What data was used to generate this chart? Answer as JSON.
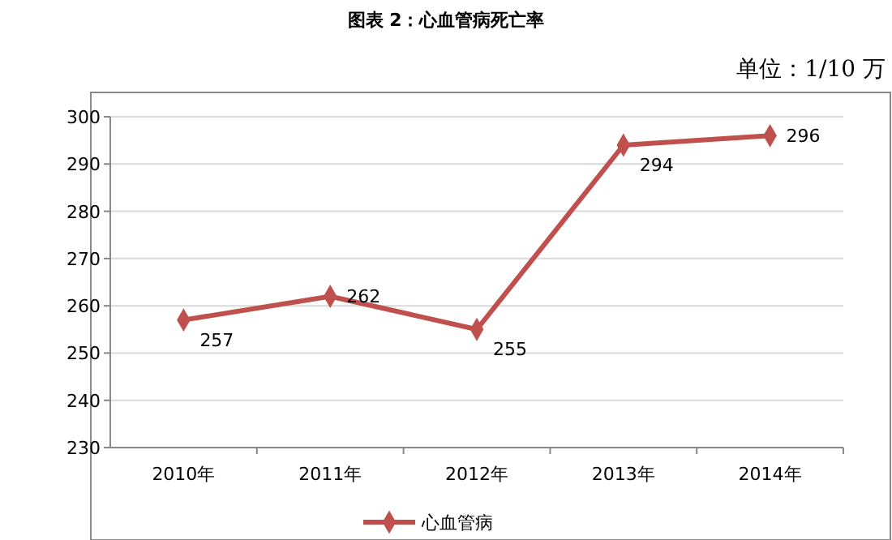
{
  "chart_data": {
    "type": "line",
    "title": "图表 2：心血管病死亡率",
    "annotations": [
      "单位：1/10 万"
    ],
    "categories": [
      "2010年",
      "2011年",
      "2012年",
      "2013年",
      "2014年"
    ],
    "series": [
      {
        "name": "心血管病",
        "color": "#c0504d",
        "values": [
          257,
          262,
          255,
          294,
          296
        ]
      }
    ],
    "ylim": [
      230,
      300
    ],
    "yticks": [
      230,
      240,
      250,
      260,
      270,
      280,
      290,
      300
    ],
    "grid": "y",
    "legend": "bottom",
    "marker": "diamond",
    "line_style": "solid",
    "data_labels": true
  }
}
